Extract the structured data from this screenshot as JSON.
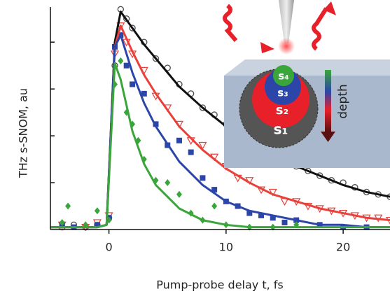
{
  "chart_data": {
    "type": "scatter",
    "xlabel": "Pump-probe delay t, fs",
    "ylabel": "THz s-SNOM, au",
    "xlim": [
      -5,
      24
    ],
    "xticks": [
      0,
      10,
      20
    ],
    "ylim": [
      0,
      0.95
    ],
    "yticks": [
      0.2,
      0.4,
      0.6,
      0.8
    ],
    "annotations": [
      "s₄",
      "s₃",
      "s₂",
      "s₁",
      "depth"
    ],
    "series": [
      {
        "kind": "points",
        "marker": "circle",
        "color": "#555555",
        "x": [
          -4,
          -3,
          -2,
          -1,
          0,
          0.5,
          1,
          1.5,
          2,
          3,
          4,
          5,
          6,
          7,
          8,
          9,
          10,
          11,
          12,
          13,
          14,
          15,
          16,
          17,
          18,
          19,
          20,
          21,
          22,
          23,
          24
        ],
        "values": [
          0.01,
          0.02,
          0.01,
          0.02,
          0.05,
          0.7,
          0.94,
          0.9,
          0.86,
          0.8,
          0.73,
          0.69,
          0.62,
          0.58,
          0.52,
          0.49,
          0.45,
          0.41,
          0.38,
          0.35,
          0.31,
          0.3,
          0.27,
          0.25,
          0.23,
          0.21,
          0.2,
          0.18,
          0.16,
          0.15,
          0.14
        ]
      },
      {
        "kind": "points",
        "marker": "triangle",
        "color": "#e8403a",
        "x": [
          -4,
          -2,
          -1,
          0,
          0.5,
          1,
          1.5,
          2,
          3,
          4,
          5,
          6,
          7,
          8,
          9,
          10,
          11,
          12,
          13,
          14,
          15,
          16,
          17,
          18,
          19,
          20,
          21,
          22,
          23,
          24
        ],
        "values": [
          0.02,
          0.01,
          0.03,
          0.06,
          0.75,
          0.87,
          0.8,
          0.75,
          0.68,
          0.57,
          0.52,
          0.45,
          0.38,
          0.36,
          0.31,
          0.27,
          0.22,
          0.21,
          0.17,
          0.16,
          0.12,
          0.12,
          0.1,
          0.09,
          0.08,
          0.07,
          0.06,
          0.05,
          0.05,
          0.04
        ]
      },
      {
        "kind": "points",
        "marker": "square",
        "color": "#2b46a8",
        "x": [
          -4,
          -3,
          -1,
          0,
          0.5,
          1,
          1.5,
          2,
          3,
          4,
          5,
          6,
          7,
          8,
          9,
          10,
          11,
          12,
          13,
          14,
          15,
          16,
          18,
          20,
          22
        ],
        "values": [
          0.02,
          0.01,
          0.02,
          0.05,
          0.78,
          0.83,
          0.7,
          0.62,
          0.58,
          0.45,
          0.36,
          0.38,
          0.33,
          0.22,
          0.17,
          0.12,
          0.1,
          0.07,
          0.06,
          0.05,
          0.03,
          0.04,
          0.02,
          0.01,
          0.01
        ]
      },
      {
        "kind": "points",
        "marker": "diamond",
        "color": "#3aa53a",
        "x": [
          -4,
          -3.5,
          -2,
          -1,
          0,
          0.5,
          1,
          1.5,
          2,
          2.5,
          3,
          4,
          5,
          6,
          7,
          8,
          9,
          10,
          12,
          14,
          16
        ],
        "values": [
          0.03,
          0.1,
          0.02,
          0.08,
          0.04,
          0.62,
          0.72,
          0.5,
          0.45,
          0.38,
          0.3,
          0.21,
          0.2,
          0.15,
          0.07,
          0.04,
          0.1,
          0.02,
          0.01,
          0.01,
          0.02
        ]
      },
      {
        "kind": "line",
        "color": "#111111",
        "x": [
          -5,
          -1,
          -0.2,
          0.5,
          1,
          2,
          3,
          4,
          6,
          8,
          10,
          12,
          14,
          16,
          18,
          20,
          22,
          24
        ],
        "values": [
          0.01,
          0.01,
          0.02,
          0.8,
          0.93,
          0.86,
          0.79,
          0.73,
          0.61,
          0.52,
          0.44,
          0.37,
          0.32,
          0.27,
          0.23,
          0.19,
          0.16,
          0.14
        ]
      },
      {
        "kind": "line",
        "color": "#e8403a",
        "x": [
          -5,
          -1,
          -0.2,
          0.5,
          1,
          2,
          3,
          4,
          6,
          8,
          10,
          12,
          14,
          16,
          18,
          20,
          22,
          24
        ],
        "values": [
          0.01,
          0.01,
          0.02,
          0.78,
          0.87,
          0.76,
          0.66,
          0.58,
          0.44,
          0.34,
          0.26,
          0.2,
          0.15,
          0.12,
          0.09,
          0.07,
          0.05,
          0.04
        ]
      },
      {
        "kind": "line",
        "color": "#2b46a8",
        "x": [
          -5,
          -1,
          -0.2,
          0.5,
          1,
          2,
          3,
          4,
          6,
          8,
          10,
          12,
          14,
          16,
          18,
          20,
          22,
          24
        ],
        "values": [
          0.01,
          0.01,
          0.02,
          0.78,
          0.83,
          0.67,
          0.54,
          0.44,
          0.29,
          0.19,
          0.12,
          0.08,
          0.06,
          0.04,
          0.02,
          0.02,
          0.01,
          0.01
        ]
      },
      {
        "kind": "line",
        "color": "#3aa53a",
        "x": [
          -5,
          -1,
          -0.2,
          0.5,
          1,
          2,
          3,
          4,
          6,
          8,
          10,
          12,
          14,
          16,
          18,
          20,
          22,
          24
        ],
        "values": [
          0.01,
          0.01,
          0.02,
          0.71,
          0.64,
          0.42,
          0.28,
          0.19,
          0.09,
          0.04,
          0.02,
          0.01,
          0.01,
          0.01,
          0.01,
          0.01,
          0.01,
          0.01
        ]
      }
    ]
  }
}
